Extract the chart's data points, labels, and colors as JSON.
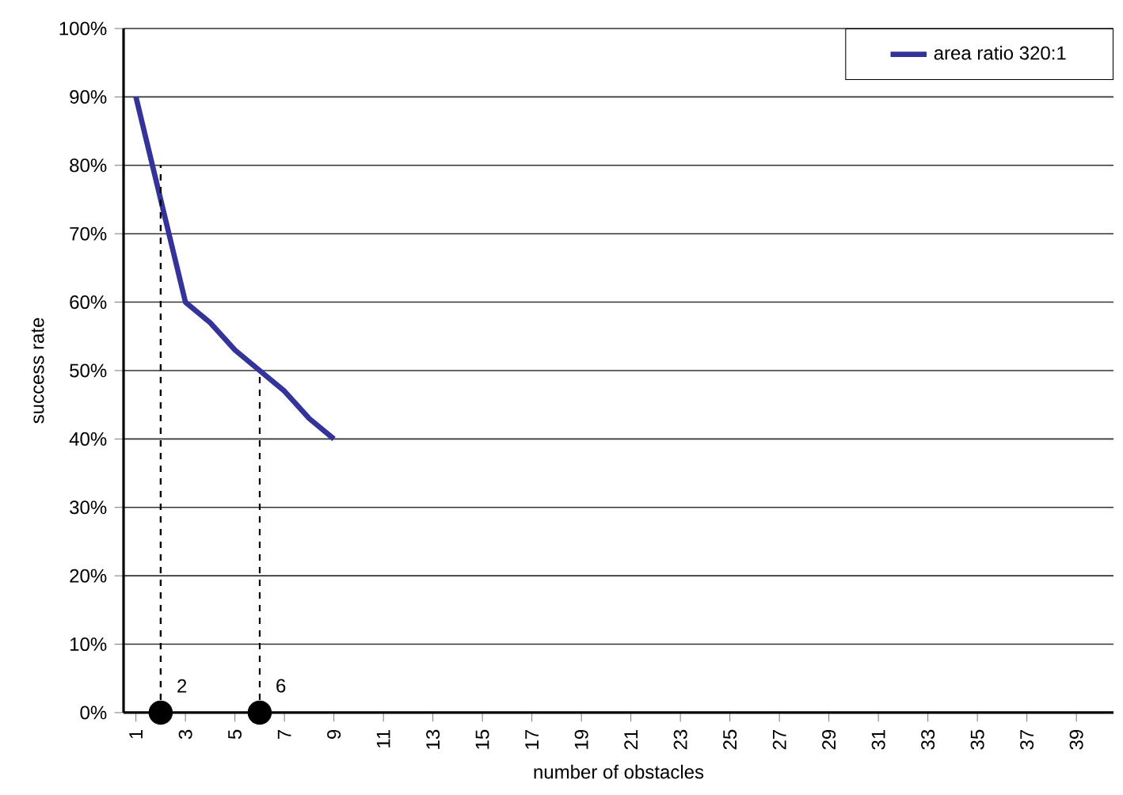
{
  "chart_data": {
    "type": "line",
    "xlabel": "number of obstacles",
    "ylabel": "success rate",
    "series": [
      {
        "name": "area ratio 320:1",
        "color": "#333399",
        "marker": "none",
        "line_style": "solid",
        "x": [
          1,
          2,
          3,
          4,
          5,
          6,
          7,
          8,
          9
        ],
        "values": [
          90,
          75,
          60,
          57,
          53,
          50,
          47,
          43,
          40
        ]
      },
      {
        "color": "#000000",
        "marker": "none",
        "line_style": "dashed",
        "x": [
          2,
          2
        ],
        "values": [
          0,
          80
        ]
      },
      {
        "color": "#000000",
        "marker": "none",
        "line_style": "dashed",
        "x": [
          6,
          6
        ],
        "values": [
          0,
          50
        ]
      },
      {
        "type": "scatter",
        "color": "#000000",
        "marker": "circle",
        "x": [
          2,
          6
        ],
        "values": [
          0,
          0
        ]
      }
    ],
    "annotations": [
      {
        "text": "2",
        "x": 2,
        "y": 0
      },
      {
        "text": "6",
        "x": 6,
        "y": 0
      }
    ],
    "xlim": [
      0.5,
      40.5
    ],
    "xticks": [
      1,
      3,
      5,
      7,
      9,
      11,
      13,
      15,
      17,
      19,
      21,
      23,
      25,
      27,
      29,
      31,
      33,
      35,
      37,
      39
    ],
    "ylim": [
      0,
      100
    ],
    "yticks": [
      {
        "value": 0,
        "label": "0%"
      },
      {
        "value": 10,
        "label": "10%"
      },
      {
        "value": 20,
        "label": "20%"
      },
      {
        "value": 30,
        "label": "30%"
      },
      {
        "value": 40,
        "label": "40%"
      },
      {
        "value": 50,
        "label": "50%"
      },
      {
        "value": 60,
        "label": "60%"
      },
      {
        "value": 70,
        "label": "70%"
      },
      {
        "value": 80,
        "label": "80%"
      },
      {
        "value": 90,
        "label": "90%"
      },
      {
        "value": 100,
        "label": "100%"
      }
    ],
    "grid": "y",
    "legend": "top right"
  }
}
